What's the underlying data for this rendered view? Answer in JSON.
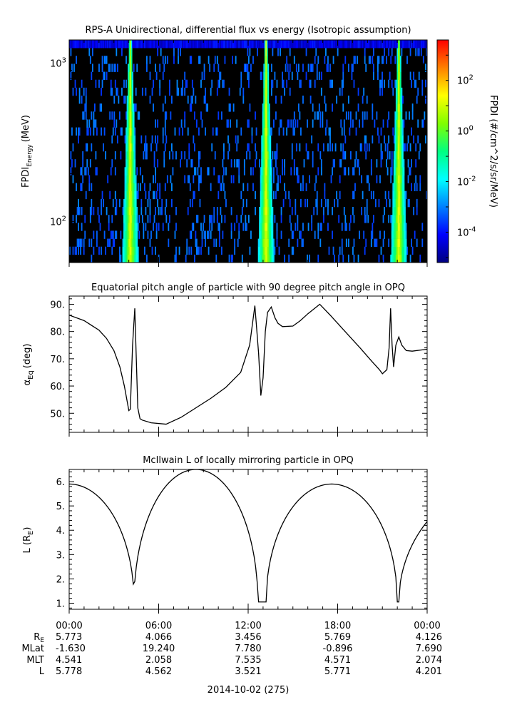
{
  "chart_data": [
    {
      "type": "heatmap",
      "title": "RPS-A Unidirectional, differential flux vs energy (Isotropic assumption)",
      "ylabel_main": "FPDI",
      "ylabel_sub": "Energy",
      "ylabel_unit": "(MeV)",
      "yscale": "log",
      "ylim": [
        55,
        1400
      ],
      "yticks": [
        {
          "label_base": "10",
          "label_exp": "2",
          "value": 100
        },
        {
          "label_base": "10",
          "label_exp": "3",
          "value": 1000
        }
      ],
      "x_hours_range": [
        0,
        24
      ],
      "colorbar": {
        "label": "FPDI (#/cm^2/s/sr/MeV)",
        "scale": "log",
        "range_exp": [
          -5.2,
          3.6
        ],
        "colors": [
          "#00007f",
          "#0000ff",
          "#0080ff",
          "#00ffff",
          "#00ff80",
          "#80ff00",
          "#ffff00",
          "#ff8000",
          "#ff0000"
        ],
        "ticks": [
          {
            "base": "10",
            "exp": "2",
            "value": 2
          },
          {
            "base": "10",
            "exp": "0",
            "value": 0
          },
          {
            "base": "10",
            "exp": "-2",
            "value": -2
          },
          {
            "base": "10",
            "exp": "-4",
            "value": -4
          }
        ]
      },
      "belt_crossings_hours": [
        4.1,
        13.2,
        22.1
      ],
      "background_color": "#000000"
    },
    {
      "type": "line",
      "title": "Equatorial pitch angle of particle with 90 degree pitch angle in OPQ",
      "ylabel_main": "α",
      "ylabel_sub": "Eq",
      "ylabel_unit": "(deg)",
      "ylim": [
        43,
        93
      ],
      "yticks": [
        50,
        60,
        70,
        80,
        90
      ],
      "ytick_labels": [
        "50.",
        "60.",
        "70.",
        "80.",
        "90."
      ],
      "series": [
        {
          "x": [
            0,
            1,
            2,
            2.5,
            3,
            3.4,
            3.7,
            3.9,
            4.0,
            4.1,
            4.25,
            4.4,
            4.5,
            4.6,
            4.75,
            4.9,
            5.5,
            6.5,
            7.5,
            8.5,
            9.5,
            10.5,
            11.5,
            12.1,
            12.45,
            12.7,
            12.85,
            13.0,
            13.15,
            13.3,
            13.55,
            13.8,
            14.0,
            14.3,
            15.0,
            15.5,
            16.0,
            16.8,
            17.5,
            18.5,
            19.5,
            20.3,
            20.8,
            21.0,
            21.3,
            21.45,
            21.55,
            21.65,
            21.75,
            21.9,
            22.1,
            22.3,
            22.6,
            23.0,
            24.0
          ],
          "y": [
            86.0,
            84.0,
            80.5,
            77.5,
            73.0,
            67.0,
            60.0,
            54.0,
            51.0,
            51.5,
            75.0,
            88.5,
            70.0,
            52.0,
            48.0,
            47.5,
            46.5,
            46.0,
            48.5,
            52.0,
            55.5,
            59.5,
            65.0,
            75.0,
            89.5,
            72.0,
            56.5,
            63.0,
            80.0,
            87.0,
            89.0,
            85.0,
            83.0,
            81.8,
            82.0,
            84.0,
            86.5,
            90.0,
            86.0,
            80.0,
            74.0,
            69.0,
            66.0,
            64.5,
            66.0,
            74.0,
            88.5,
            75.0,
            67.0,
            75.0,
            78.0,
            75.0,
            73.0,
            72.8,
            73.5
          ]
        }
      ]
    },
    {
      "type": "line",
      "title": "McIlwain L of locally mirroring particle in OPQ",
      "ylabel_main": "L (R",
      "ylabel_sub": "E",
      "ylabel_unit": ")",
      "ylim": [
        0.75,
        6.5
      ],
      "yticks": [
        1,
        2,
        3,
        4,
        5,
        6
      ],
      "ytick_labels": [
        "1.",
        "2.",
        "3.",
        "4.",
        "5.",
        "6."
      ],
      "dips_hours": [
        4.35,
        13.2,
        22.1
      ],
      "peaks": [
        {
          "hours": 0,
          "value": 5.9
        },
        {
          "hours": 8.5,
          "value": 6.5
        },
        {
          "hours": 17.6,
          "value": 5.9
        }
      ]
    }
  ],
  "x_axis": {
    "tick_labels": [
      "00:00",
      "06:00",
      "12:00",
      "18:00",
      "00:00"
    ],
    "tick_hours": [
      0,
      6,
      12,
      18,
      24
    ],
    "date_label": "2014-10-02 (275)"
  },
  "ephemeris": {
    "rows": [
      {
        "label_main": "R",
        "label_sub": "E",
        "values": [
          "5.773",
          "4.066",
          "3.456",
          "5.769",
          "4.126"
        ]
      },
      {
        "label_main": "MLat",
        "label_sub": "",
        "values": [
          "-1.630",
          "19.240",
          "7.780",
          "-0.896",
          "7.690"
        ]
      },
      {
        "label_main": "MLT",
        "label_sub": "",
        "values": [
          "4.541",
          "2.058",
          "7.535",
          "4.571",
          "2.074"
        ]
      },
      {
        "label_main": "L",
        "label_sub": "",
        "values": [
          "5.778",
          "4.562",
          "3.521",
          "5.771",
          "4.201"
        ]
      }
    ]
  }
}
